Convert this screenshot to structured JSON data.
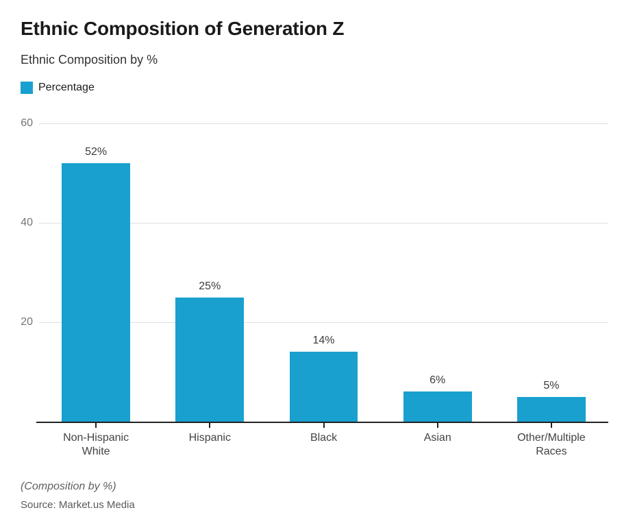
{
  "chart_data": {
    "type": "bar",
    "title": "Ethnic Composition of Generation Z",
    "subtitle": "Ethnic Composition by %",
    "legend": {
      "label": "Percentage",
      "position": "top-left"
    },
    "categories": [
      "Non-Hispanic White",
      "Hispanic",
      "Black",
      "Asian",
      "Other/Multiple Races"
    ],
    "values": [
      52,
      25,
      14,
      6,
      5
    ],
    "value_labels": [
      "52%",
      "25%",
      "14%",
      "6%",
      "5%"
    ],
    "xlabel": "",
    "ylabel": "",
    "ylim": [
      0,
      60
    ],
    "yticks": [
      20,
      40,
      60
    ],
    "grid": true,
    "bar_color": "#19a0cf",
    "footnote": "(Composition by %)",
    "source": "Source: Market.us Media"
  },
  "colors": {
    "bar": "#19a0cf",
    "title_text": "#1a1a1a",
    "axis_line": "#212121",
    "gridline": "#e0e0e0",
    "y_tick_text": "#757575",
    "x_label_text": "#424242",
    "footnote_text": "#5f5f5f"
  }
}
